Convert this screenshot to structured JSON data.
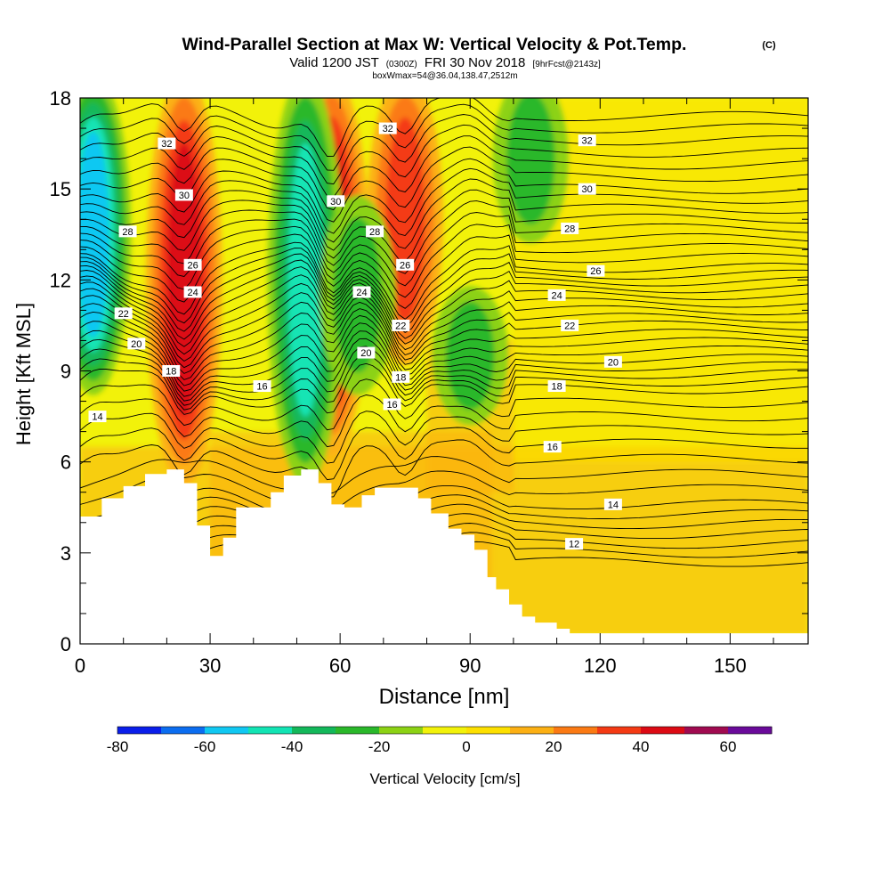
{
  "chart_data": {
    "type": "heatmap",
    "title": "Wind-Parallel Section at Max W: Vertical Velocity & Pot.Temp.",
    "title_mark": "(C)",
    "subtitle": {
      "prefix": "Valid 1200 JST",
      "utc": "(0300Z)",
      "date": "FRI 30 Nov 2018",
      "fcst": "[9hrFcst@2143z]"
    },
    "subtitle2": "boxWmax=54@36.04,138.47,2512m",
    "xlabel": "Distance [nm]",
    "ylabel": "Height [Kft MSL]",
    "xlim": [
      0,
      168
    ],
    "ylim": [
      0,
      18
    ],
    "xticks": [
      "0",
      "30",
      "60",
      "90",
      "120",
      "150"
    ],
    "xtick_values": [
      0,
      30,
      60,
      90,
      120,
      150
    ],
    "yticks": [
      "0",
      "3",
      "6",
      "9",
      "12",
      "15",
      "18"
    ],
    "ytick_values": [
      0,
      3,
      6,
      9,
      12,
      15,
      18
    ],
    "colorbar": {
      "label": "Vertical Velocity [cm/s]",
      "tick_labels": [
        "-80",
        "-60",
        "-40",
        "-20",
        "0",
        "20",
        "40",
        "60"
      ],
      "tick_values": [
        -80,
        -60,
        -40,
        -20,
        0,
        20,
        40,
        60
      ],
      "bins": [
        -80,
        -70,
        -60,
        -50,
        -40,
        -30,
        -20,
        -10,
        0,
        10,
        20,
        30,
        40,
        50,
        60,
        70
      ],
      "colors": [
        "#0a1eea",
        "#0b6df0",
        "#10c8f2",
        "#12e4b4",
        "#13b85a",
        "#2ab82a",
        "#8cd214",
        "#f2f20a",
        "#fde000",
        "#fcb014",
        "#fb7a14",
        "#f43a14",
        "#dc0a14",
        "#a00a50",
        "#6a0a9a"
      ]
    },
    "background_color": "#f2f20a",
    "terrain": [
      [
        0,
        4.2
      ],
      [
        5,
        4.8
      ],
      [
        10,
        5.2
      ],
      [
        15,
        5.6
      ],
      [
        20,
        5.75
      ],
      [
        24,
        5.3
      ],
      [
        27,
        3.9
      ],
      [
        30,
        2.9
      ],
      [
        33,
        3.5
      ],
      [
        36,
        4.5
      ],
      [
        40,
        4.5
      ],
      [
        44,
        5.0
      ],
      [
        47,
        5.55
      ],
      [
        51,
        5.75
      ],
      [
        55,
        5.3
      ],
      [
        58,
        4.6
      ],
      [
        61,
        4.5
      ],
      [
        65,
        4.9
      ],
      [
        68,
        5.15
      ],
      [
        74,
        5.15
      ],
      [
        78,
        4.8
      ],
      [
        81,
        4.3
      ],
      [
        85,
        3.8
      ],
      [
        88,
        3.6
      ],
      [
        91,
        3.1
      ],
      [
        94,
        2.2
      ],
      [
        96,
        1.8
      ],
      [
        99,
        1.3
      ],
      [
        102,
        0.9
      ],
      [
        105,
        0.7
      ],
      [
        110,
        0.5
      ],
      [
        113,
        0.35
      ],
      [
        168,
        0.35
      ]
    ],
    "updraft_cores": [
      {
        "x": 24,
        "y_range": [
          6,
          18
        ],
        "w_max": 40
      },
      {
        "x": 58,
        "y_range": [
          7,
          18
        ],
        "w_max": 40
      },
      {
        "x": 75,
        "y_range": [
          10,
          18
        ],
        "w_max": 38
      }
    ],
    "downdraft_cores": [
      {
        "x": 3,
        "y_range": [
          9,
          18
        ],
        "w_min": -50
      },
      {
        "x": 52,
        "y_range": [
          6,
          18
        ],
        "w_min": -45
      },
      {
        "x": 64,
        "y_range": [
          9,
          14
        ],
        "w_min": -25
      },
      {
        "x": 90,
        "y_range": [
          8,
          11
        ],
        "w_min": -25
      },
      {
        "x": 104,
        "y_range": [
          14,
          18
        ],
        "w_min": -20
      }
    ],
    "contour_labels": [
      {
        "text": "32",
        "x": 20,
        "y": 16.5
      },
      {
        "text": "30",
        "x": 24,
        "y": 14.8
      },
      {
        "text": "28",
        "x": 11,
        "y": 13.6
      },
      {
        "text": "26",
        "x": 26,
        "y": 12.5
      },
      {
        "text": "24",
        "x": 26,
        "y": 11.6
      },
      {
        "text": "22",
        "x": 10,
        "y": 10.9
      },
      {
        "text": "20",
        "x": 13,
        "y": 9.9
      },
      {
        "text": "18",
        "x": 21,
        "y": 9.0
      },
      {
        "text": "16",
        "x": 42,
        "y": 8.5
      },
      {
        "text": "14",
        "x": 4,
        "y": 7.5
      },
      {
        "text": "32",
        "x": 71,
        "y": 17.0
      },
      {
        "text": "30",
        "x": 59,
        "y": 14.6
      },
      {
        "text": "28",
        "x": 68,
        "y": 13.6
      },
      {
        "text": "26",
        "x": 75,
        "y": 12.5
      },
      {
        "text": "24",
        "x": 65,
        "y": 11.6
      },
      {
        "text": "22",
        "x": 74,
        "y": 10.5
      },
      {
        "text": "20",
        "x": 66,
        "y": 9.6
      },
      {
        "text": "18",
        "x": 74,
        "y": 8.8
      },
      {
        "text": "16",
        "x": 72,
        "y": 7.9
      },
      {
        "text": "32",
        "x": 117,
        "y": 16.6
      },
      {
        "text": "30",
        "x": 117,
        "y": 15.0
      },
      {
        "text": "28",
        "x": 113,
        "y": 13.7
      },
      {
        "text": "26",
        "x": 119,
        "y": 12.3
      },
      {
        "text": "24",
        "x": 110,
        "y": 11.5
      },
      {
        "text": "22",
        "x": 113,
        "y": 10.5
      },
      {
        "text": "20",
        "x": 123,
        "y": 9.3
      },
      {
        "text": "18",
        "x": 110,
        "y": 8.5
      },
      {
        "text": "16",
        "x": 109,
        "y": 6.5
      },
      {
        "text": "14",
        "x": 123,
        "y": 4.6
      },
      {
        "text": "12",
        "x": 114,
        "y": 3.3
      }
    ],
    "isentrope_levels": [
      12,
      14,
      16,
      18,
      20,
      22,
      24,
      26,
      28,
      30,
      32
    ]
  }
}
